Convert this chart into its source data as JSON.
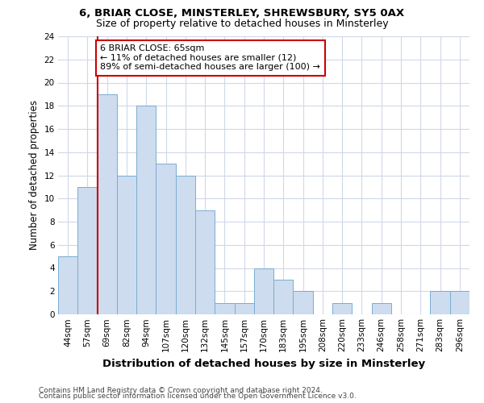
{
  "title1": "6, BRIAR CLOSE, MINSTERLEY, SHREWSBURY, SY5 0AX",
  "title2": "Size of property relative to detached houses in Minsterley",
  "xlabel": "Distribution of detached houses by size in Minsterley",
  "ylabel": "Number of detached properties",
  "categories": [
    "44sqm",
    "57sqm",
    "69sqm",
    "82sqm",
    "94sqm",
    "107sqm",
    "120sqm",
    "132sqm",
    "145sqm",
    "157sqm",
    "170sqm",
    "183sqm",
    "195sqm",
    "208sqm",
    "220sqm",
    "233sqm",
    "246sqm",
    "258sqm",
    "271sqm",
    "283sqm",
    "296sqm"
  ],
  "values": [
    5,
    11,
    19,
    12,
    18,
    13,
    12,
    9,
    1,
    1,
    4,
    3,
    2,
    0,
    1,
    0,
    1,
    0,
    0,
    2,
    2
  ],
  "bar_color": "#cddcee",
  "bar_edge_color": "#7aadd4",
  "property_line_x": 1.5,
  "property_line_color": "#cc0000",
  "annotation_title": "6 BRIAR CLOSE: 65sqm",
  "annotation_line1": "← 11% of detached houses are smaller (12)",
  "annotation_line2": "89% of semi-detached houses are larger (100) →",
  "annotation_box_color": "#ffffff",
  "annotation_box_edge_color": "#cc0000",
  "ylim": [
    0,
    24
  ],
  "yticks": [
    0,
    2,
    4,
    6,
    8,
    10,
    12,
    14,
    16,
    18,
    20,
    22,
    24
  ],
  "footer1": "Contains HM Land Registry data © Crown copyright and database right 2024.",
  "footer2": "Contains public sector information licensed under the Open Government Licence v3.0.",
  "background_color": "#ffffff",
  "plot_bg_color": "#ffffff",
  "grid_color": "#d0d8e8",
  "title1_fontsize": 9.5,
  "title2_fontsize": 9,
  "xlabel_fontsize": 9.5,
  "ylabel_fontsize": 8.5,
  "tick_fontsize": 7.5,
  "annotation_fontsize": 8,
  "footer_fontsize": 6.5
}
